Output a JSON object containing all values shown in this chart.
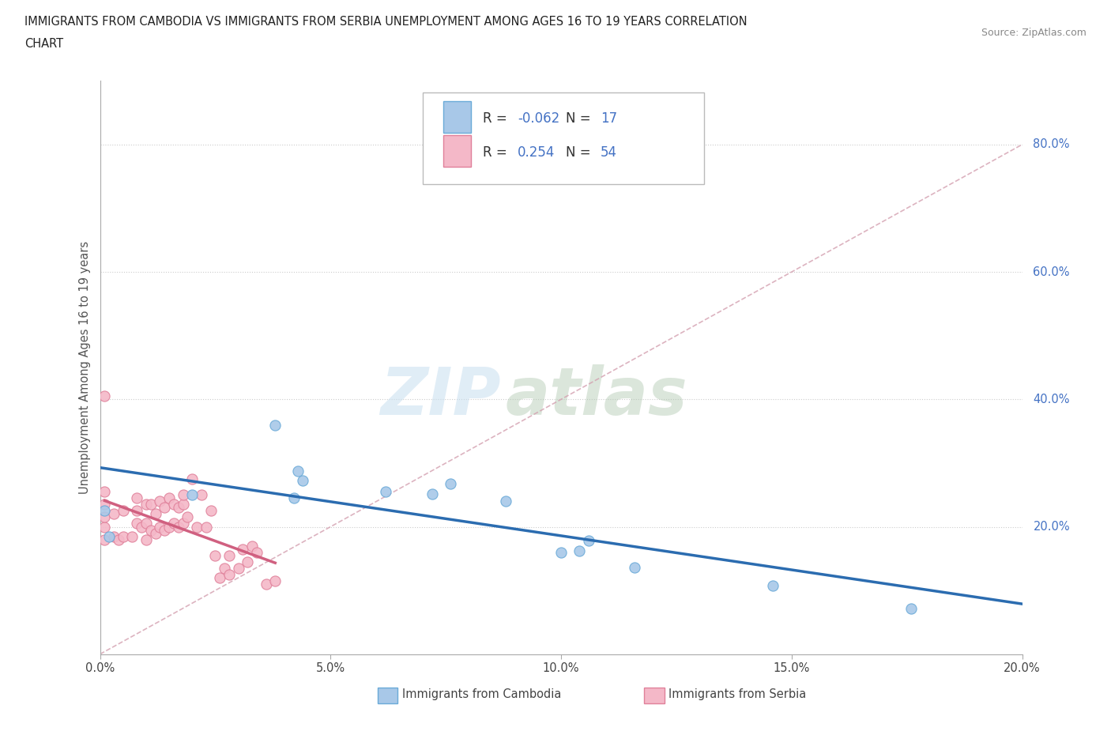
{
  "title_line1": "IMMIGRANTS FROM CAMBODIA VS IMMIGRANTS FROM SERBIA UNEMPLOYMENT AMONG AGES 16 TO 19 YEARS CORRELATION",
  "title_line2": "CHART",
  "source": "Source: ZipAtlas.com",
  "ylabel": "Unemployment Among Ages 16 to 19 years",
  "xlim": [
    0.0,
    0.2
  ],
  "ylim": [
    0.0,
    0.9
  ],
  "xticks": [
    0.0,
    0.05,
    0.1,
    0.15,
    0.2
  ],
  "xticklabels": [
    "0.0%",
    "5.0%",
    "10.0%",
    "15.0%",
    "20.0%"
  ],
  "ytick_vals": [
    0.2,
    0.4,
    0.6,
    0.8
  ],
  "ytick_labels": [
    "20.0%",
    "40.0%",
    "60.0%",
    "80.0%"
  ],
  "cambodia_color": "#a8c8e8",
  "cambodia_edge": "#6aaad8",
  "serbia_color": "#f4b8c8",
  "serbia_edge": "#e0809a",
  "trend_cambodia_color": "#2b6cb0",
  "trend_serbia_color": "#d06080",
  "diagonal_color": "#d4a0b0",
  "R_cambodia": -0.062,
  "N_cambodia": 17,
  "R_serbia": 0.254,
  "N_serbia": 54,
  "cambodia_x": [
    0.001,
    0.002,
    0.02,
    0.038,
    0.042,
    0.044,
    0.043,
    0.062,
    0.072,
    0.076,
    0.088,
    0.1,
    0.104,
    0.106,
    0.116,
    0.146,
    0.176
  ],
  "cambodia_y": [
    0.225,
    0.185,
    0.25,
    0.36,
    0.245,
    0.272,
    0.288,
    0.255,
    0.252,
    0.268,
    0.24,
    0.16,
    0.162,
    0.178,
    0.136,
    0.108,
    0.072
  ],
  "serbia_x": [
    0.001,
    0.001,
    0.001,
    0.001,
    0.001,
    0.001,
    0.003,
    0.003,
    0.004,
    0.005,
    0.005,
    0.007,
    0.008,
    0.008,
    0.008,
    0.009,
    0.01,
    0.01,
    0.01,
    0.011,
    0.011,
    0.012,
    0.012,
    0.013,
    0.013,
    0.014,
    0.014,
    0.015,
    0.015,
    0.016,
    0.016,
    0.017,
    0.017,
    0.018,
    0.018,
    0.018,
    0.019,
    0.02,
    0.021,
    0.022,
    0.023,
    0.024,
    0.025,
    0.026,
    0.027,
    0.028,
    0.028,
    0.03,
    0.031,
    0.032,
    0.033,
    0.034,
    0.036,
    0.038
  ],
  "serbia_y": [
    0.18,
    0.2,
    0.215,
    0.235,
    0.255,
    0.405,
    0.185,
    0.22,
    0.18,
    0.185,
    0.225,
    0.185,
    0.205,
    0.225,
    0.245,
    0.2,
    0.18,
    0.205,
    0.235,
    0.195,
    0.235,
    0.19,
    0.22,
    0.2,
    0.24,
    0.195,
    0.23,
    0.2,
    0.245,
    0.205,
    0.235,
    0.2,
    0.23,
    0.205,
    0.235,
    0.25,
    0.215,
    0.275,
    0.2,
    0.25,
    0.2,
    0.225,
    0.155,
    0.12,
    0.135,
    0.125,
    0.155,
    0.135,
    0.165,
    0.145,
    0.17,
    0.16,
    0.11,
    0.115
  ],
  "watermark_zip": "ZIP",
  "watermark_atlas": "atlas"
}
